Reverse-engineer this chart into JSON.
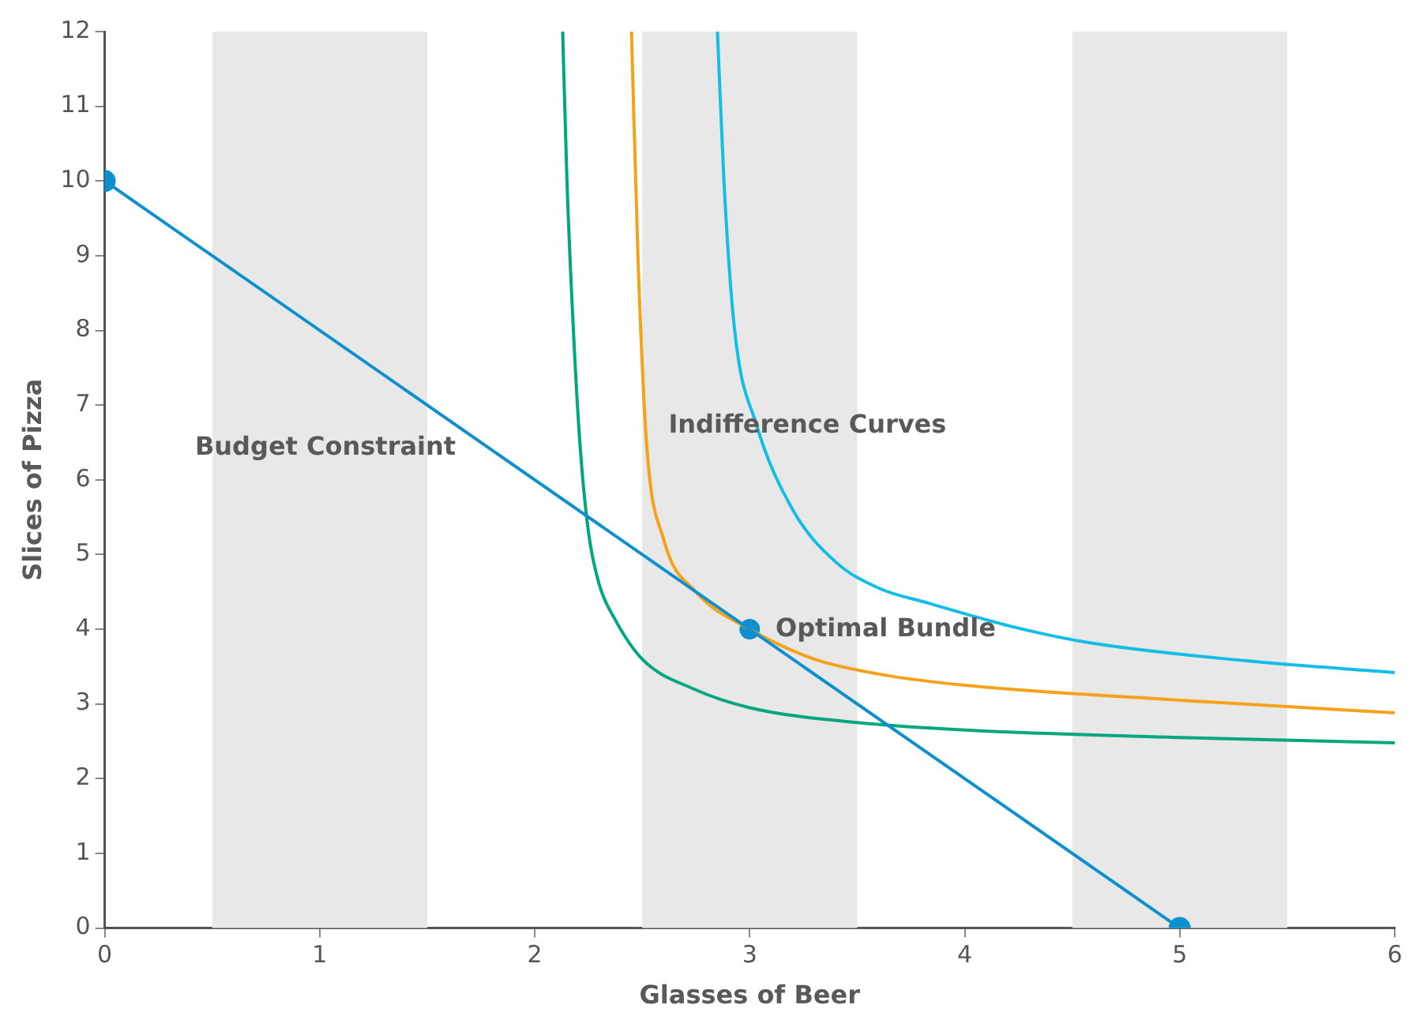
{
  "chart_data": {
    "type": "line",
    "xlabel": "Glasses of Beer",
    "ylabel": "Slices of Pizza",
    "xlim": [
      0,
      6
    ],
    "xticks": [
      0,
      1,
      2,
      3,
      4,
      5,
      6
    ],
    "ylim": [
      0,
      12
    ],
    "yticks": [
      0,
      1,
      2,
      3,
      4,
      5,
      6,
      7,
      8,
      9,
      10,
      11,
      12
    ],
    "grid": false,
    "legend": false,
    "bands": [
      {
        "axis": "x",
        "from": 0.5,
        "to": 1.5,
        "color": "#e8e8e8"
      },
      {
        "axis": "x",
        "from": 2.5,
        "to": 3.5,
        "color": "#e8e8e8"
      },
      {
        "axis": "x",
        "from": 4.5,
        "to": 5.5,
        "color": "#e8e8e8"
      }
    ],
    "series": [
      {
        "color": "#0e8fce",
        "marker": "circle",
        "x": [
          0,
          5
        ],
        "values": [
          10,
          0
        ]
      },
      {
        "color": "#00a77e",
        "marker": "none",
        "x": [
          2.13,
          2.15,
          2.18,
          2.21,
          2.25,
          2.3,
          2.37,
          2.5,
          2.74,
          3,
          3.5,
          4,
          5,
          6
        ],
        "values": [
          12,
          10,
          8,
          6.5,
          5.3,
          4.6,
          4.15,
          3.6,
          3.2,
          2.95,
          2.75,
          2.65,
          2.55,
          2.48
        ]
      },
      {
        "color": "#f5a21b",
        "marker": "none",
        "x": [
          2.45,
          2.48,
          2.52,
          2.6,
          2.75,
          3,
          3.3,
          3.6,
          4,
          5,
          6
        ],
        "values": [
          12,
          9,
          6.5,
          5.2,
          4.5,
          4,
          3.6,
          3.4,
          3.25,
          3.05,
          2.88
        ]
      },
      {
        "color": "#13bde6",
        "marker": "none",
        "x": [
          2.85,
          2.88,
          2.93,
          3.03,
          3.2,
          3.4,
          3.6,
          3.83,
          4.2,
          4.56,
          5.3,
          6
        ],
        "values": [
          12,
          10,
          8,
          6.75,
          5.6,
          4.9,
          4.55,
          4.35,
          4.05,
          3.83,
          3.58,
          3.42
        ]
      },
      {
        "type": "scatter",
        "color": "#0e8fce",
        "marker": "circle",
        "x": [
          3
        ],
        "values": [
          4
        ]
      }
    ],
    "annotations": [
      "Budget Constraint",
      "Indifference Curves",
      "Optimal Bundle"
    ]
  }
}
